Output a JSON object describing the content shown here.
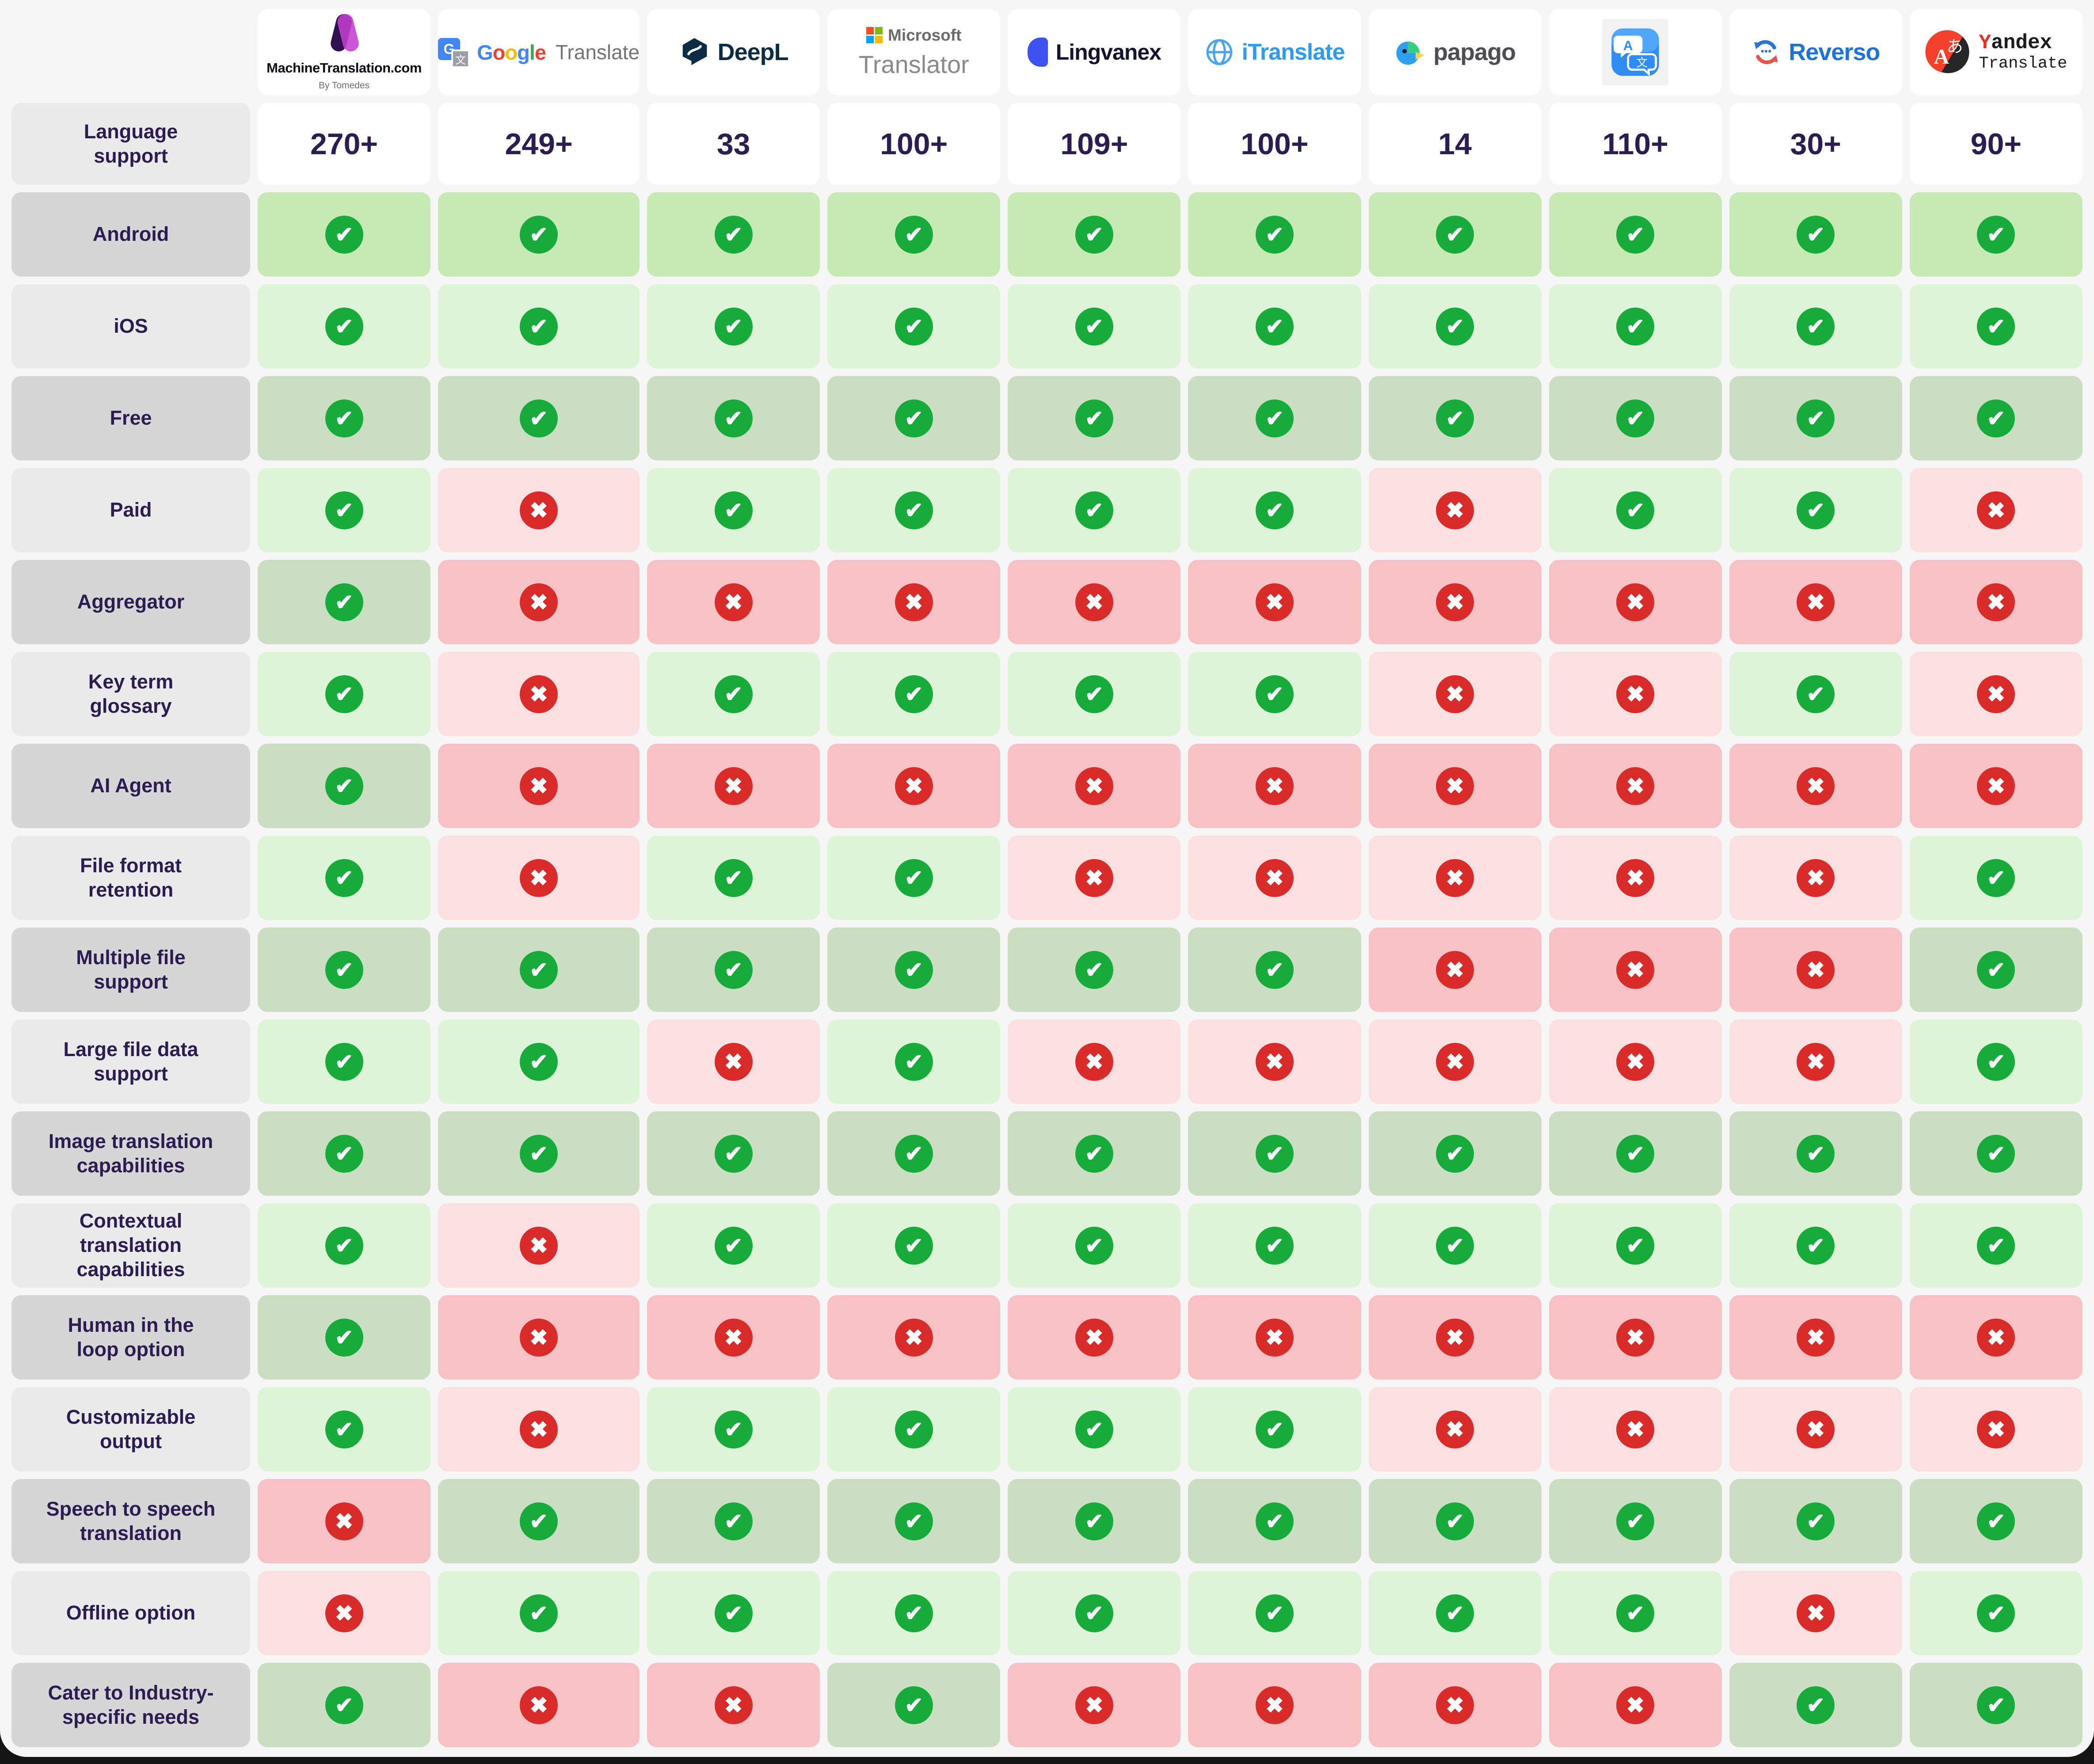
{
  "chart_data": {
    "type": "table",
    "columns": [
      "MachineTranslation.com",
      "Google Translate",
      "DeepL",
      "Microsoft Translator",
      "Lingvanex",
      "iTranslate",
      "papago",
      "Apple Translate",
      "Reverso",
      "Yandex Translate"
    ],
    "language_support_row": {
      "label": "Language support",
      "values": [
        "270+",
        "249+",
        "33",
        "100+",
        "109+",
        "100+",
        "14",
        "110+",
        "30+",
        "90+"
      ]
    },
    "feature_rows": [
      {
        "label": "Android",
        "values": [
          true,
          true,
          true,
          true,
          true,
          true,
          true,
          true,
          true,
          true
        ]
      },
      {
        "label": "iOS",
        "values": [
          true,
          true,
          true,
          true,
          true,
          true,
          true,
          true,
          true,
          true
        ]
      },
      {
        "label": "Free",
        "values": [
          true,
          true,
          true,
          true,
          true,
          true,
          true,
          true,
          true,
          true
        ]
      },
      {
        "label": "Paid",
        "values": [
          true,
          false,
          true,
          true,
          true,
          true,
          false,
          true,
          true,
          false
        ]
      },
      {
        "label": "Aggregator",
        "values": [
          true,
          false,
          false,
          false,
          false,
          false,
          false,
          false,
          false,
          false
        ]
      },
      {
        "label": "Key term glossary",
        "values": [
          true,
          false,
          true,
          true,
          true,
          true,
          false,
          false,
          true,
          false
        ]
      },
      {
        "label": "AI Agent",
        "values": [
          true,
          false,
          false,
          false,
          false,
          false,
          false,
          false,
          false,
          false
        ]
      },
      {
        "label": "File format retention",
        "values": [
          true,
          false,
          true,
          true,
          false,
          false,
          false,
          false,
          false,
          true
        ]
      },
      {
        "label": "Multiple file support",
        "values": [
          true,
          true,
          true,
          true,
          true,
          true,
          false,
          false,
          false,
          true
        ]
      },
      {
        "label": "Large file data support",
        "values": [
          true,
          true,
          false,
          true,
          false,
          false,
          false,
          false,
          false,
          true
        ]
      },
      {
        "label": "Image translation capabilities",
        "values": [
          true,
          true,
          true,
          true,
          true,
          true,
          true,
          true,
          true,
          true
        ]
      },
      {
        "label": "Contextual translation capabilities",
        "values": [
          true,
          false,
          true,
          true,
          true,
          true,
          true,
          true,
          true,
          true
        ]
      },
      {
        "label": "Human in the loop option",
        "values": [
          true,
          false,
          false,
          false,
          false,
          false,
          false,
          false,
          false,
          false
        ]
      },
      {
        "label": "Customizable output",
        "values": [
          true,
          false,
          true,
          true,
          true,
          true,
          false,
          false,
          false,
          false
        ]
      },
      {
        "label": "Speech to speech translation",
        "values": [
          false,
          true,
          true,
          true,
          true,
          true,
          true,
          true,
          true,
          true
        ]
      },
      {
        "label": "Offline option",
        "values": [
          false,
          true,
          true,
          true,
          true,
          true,
          true,
          true,
          false,
          true
        ]
      },
      {
        "label": "Cater to Industry-specific needs",
        "values": [
          true,
          false,
          false,
          true,
          false,
          false,
          false,
          false,
          true,
          true
        ]
      }
    ]
  },
  "brands": {
    "0": {
      "line1": "MachineTranslation.com",
      "line2": "By Tomedes"
    },
    "1": {
      "icon_letter": "G",
      "icon_glyph": "文",
      "letters": [
        "G",
        "o",
        "o",
        "g",
        "l",
        "e"
      ],
      "suffix": "Translate"
    },
    "2": {
      "text": "DeepL"
    },
    "3": {
      "line1": "Microsoft",
      "line2": "Translator"
    },
    "4": {
      "text": "Lingvanex"
    },
    "5": {
      "text": "iTranslate"
    },
    "6": {
      "text": "papago"
    },
    "8": {
      "text": "Reverso"
    },
    "9": {
      "y": "Y",
      "rest": "andex",
      "line2": "Translate"
    }
  },
  "colors": {
    "check_green": "#17ab3c",
    "cross_red": "#da2b2b",
    "cell_green_dark": "#cadfc2",
    "cell_green_light": "#def4d7",
    "cell_green_first": "#c7e9b4",
    "cell_red_dark": "#f8c1c3",
    "cell_red_light": "#fcdfe1",
    "label_gray_dark": "#d6d6d6",
    "label_gray_light": "#eaeaea",
    "text_purple": "#2b1d52",
    "page_bg": "#f6f6f7"
  }
}
